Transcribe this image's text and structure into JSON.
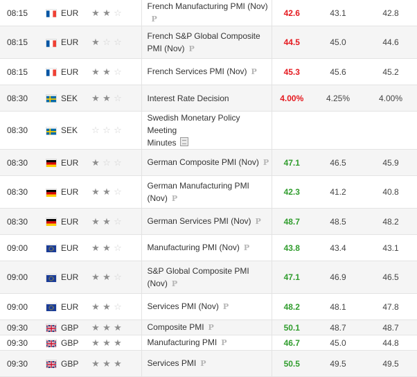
{
  "colors": {
    "negative": "#e5191f",
    "positive": "#319d2e"
  },
  "rows": [
    {
      "time": "08:15",
      "flag": "france",
      "currency": "EUR",
      "stars": 2,
      "event": "French Manufacturing PMI (Nov)",
      "event_line2": "",
      "icon": "preliminary",
      "actual": "42.6",
      "actual_color": "red",
      "forecast": "43.1",
      "previous": "42.8"
    },
    {
      "time": "08:15",
      "flag": "france",
      "currency": "EUR",
      "stars": 1,
      "event": "French S&P Global Composite",
      "event_line2": "PMI (Nov)",
      "icon": "preliminary",
      "actual": "44.5",
      "actual_color": "red",
      "forecast": "45.0",
      "previous": "44.6"
    },
    {
      "time": "08:15",
      "flag": "france",
      "currency": "EUR",
      "stars": 2,
      "event": "French Services PMI (Nov)",
      "event_line2": "",
      "icon": "preliminary",
      "actual": "45.3",
      "actual_color": "red",
      "forecast": "45.6",
      "previous": "45.2"
    },
    {
      "time": "08:30",
      "flag": "sweden",
      "currency": "SEK",
      "stars": 2,
      "event": "Interest Rate Decision",
      "event_line2": "",
      "icon": "none",
      "actual": "4.00%",
      "actual_color": "red",
      "forecast": "4.25%",
      "previous": "4.00%"
    },
    {
      "time": "08:30",
      "flag": "sweden",
      "currency": "SEK",
      "stars": 0,
      "event": "Swedish Monetary Policy Meeting",
      "event_line2": "Minutes",
      "icon": "document",
      "actual": "",
      "actual_color": "none",
      "forecast": "",
      "previous": ""
    },
    {
      "time": "08:30",
      "flag": "germany",
      "currency": "EUR",
      "stars": 1,
      "event": "German Composite PMI (Nov)",
      "event_line2": "",
      "icon": "preliminary",
      "actual": "47.1",
      "actual_color": "green",
      "forecast": "46.5",
      "previous": "45.9"
    },
    {
      "time": "08:30",
      "flag": "germany",
      "currency": "EUR",
      "stars": 2,
      "event": "German Manufacturing PMI (Nov)",
      "event_line2": "",
      "icon": "preliminary",
      "actual": "42.3",
      "actual_color": "green",
      "forecast": "41.2",
      "previous": "40.8"
    },
    {
      "time": "08:30",
      "flag": "germany",
      "currency": "EUR",
      "stars": 2,
      "event": "German Services PMI (Nov)",
      "event_line2": "",
      "icon": "preliminary",
      "actual": "48.7",
      "actual_color": "green",
      "forecast": "48.5",
      "previous": "48.2"
    },
    {
      "time": "09:00",
      "flag": "eu",
      "currency": "EUR",
      "stars": 2,
      "event": "Manufacturing PMI (Nov)",
      "event_line2": "",
      "icon": "preliminary",
      "actual": "43.8",
      "actual_color": "green",
      "forecast": "43.4",
      "previous": "43.1"
    },
    {
      "time": "09:00",
      "flag": "eu",
      "currency": "EUR",
      "stars": 2,
      "event": "S&P Global Composite PMI (Nov)",
      "event_line2": "",
      "icon": "preliminary",
      "actual": "47.1",
      "actual_color": "green",
      "forecast": "46.9",
      "previous": "46.5"
    },
    {
      "time": "09:00",
      "flag": "eu",
      "currency": "EUR",
      "stars": 2,
      "event": "Services PMI (Nov)",
      "event_line2": "",
      "icon": "preliminary",
      "actual": "48.2",
      "actual_color": "green",
      "forecast": "48.1",
      "previous": "47.8"
    },
    {
      "time": "09:30",
      "flag": "uk",
      "currency": "GBP",
      "stars": 3,
      "event": "Composite PMI",
      "event_line2": "",
      "icon": "preliminary",
      "actual": "50.1",
      "actual_color": "green",
      "forecast": "48.7",
      "previous": "48.7"
    },
    {
      "time": "09:30",
      "flag": "uk",
      "currency": "GBP",
      "stars": 3,
      "event": "Manufacturing PMI",
      "event_line2": "",
      "icon": "preliminary",
      "actual": "46.7",
      "actual_color": "green",
      "forecast": "45.0",
      "previous": "44.8"
    },
    {
      "time": "09:30",
      "flag": "uk",
      "currency": "GBP",
      "stars": 3,
      "event": "Services PMI",
      "event_line2": "",
      "icon": "preliminary",
      "actual": "50.5",
      "actual_color": "green",
      "forecast": "49.5",
      "previous": "49.5"
    }
  ],
  "preliminary_mark": "P"
}
